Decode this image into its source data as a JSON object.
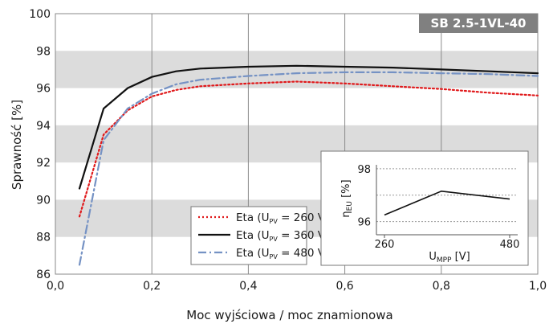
{
  "badge": "SB 2.5-1VL-40",
  "chart_data": [
    {
      "type": "line",
      "title": "",
      "xlabel": "Moc wyjściowa / moc znamionowa",
      "ylabel": "Sprawność [%]",
      "xlim": [
        0,
        1
      ],
      "ylim": [
        86,
        100
      ],
      "x_ticks": [
        "0,0",
        "0,2",
        "0,4",
        "0,6",
        "0,8",
        "1,0"
      ],
      "y_ticks": [
        "86",
        "88",
        "90",
        "92",
        "94",
        "96",
        "98",
        "100"
      ],
      "grid": "horizontal gray/white bands every 2%, vertical lines at 0.2 steps",
      "legend_position": "bottom-center",
      "series": [
        {
          "name": "Eta (U_PV = 260 V)",
          "legend_main": "Eta (U",
          "legend_sub": "PV",
          "legend_tail": " = 260 V)",
          "color": "#e0191b",
          "style": "dotted",
          "x": [
            0.05,
            0.1,
            0.15,
            0.2,
            0.25,
            0.3,
            0.4,
            0.5,
            0.6,
            0.7,
            0.8,
            0.9,
            1.0
          ],
          "y": [
            89.1,
            93.5,
            94.8,
            95.55,
            95.9,
            96.1,
            96.25,
            96.35,
            96.25,
            96.1,
            95.95,
            95.75,
            95.6
          ]
        },
        {
          "name": "Eta (U_PV = 360 V)",
          "legend_main": "Eta (U",
          "legend_sub": "PV",
          "legend_tail": " = 360 V)",
          "color": "#111111",
          "style": "solid",
          "x": [
            0.05,
            0.1,
            0.15,
            0.2,
            0.25,
            0.3,
            0.4,
            0.5,
            0.6,
            0.7,
            0.8,
            0.9,
            1.0
          ],
          "y": [
            90.6,
            94.9,
            96.0,
            96.6,
            96.9,
            97.05,
            97.15,
            97.2,
            97.15,
            97.1,
            97.0,
            96.9,
            96.8
          ]
        },
        {
          "name": "Eta (U_PV = 480 V)",
          "legend_main": "Eta (U",
          "legend_sub": "PV",
          "legend_tail": " = 480 V)",
          "color": "#7592c4",
          "style": "dashdot",
          "x": [
            0.05,
            0.1,
            0.15,
            0.2,
            0.25,
            0.3,
            0.4,
            0.5,
            0.6,
            0.7,
            0.8,
            0.9,
            1.0
          ],
          "y": [
            86.5,
            93.2,
            94.9,
            95.7,
            96.2,
            96.45,
            96.65,
            96.8,
            96.85,
            96.85,
            96.8,
            96.75,
            96.65
          ]
        }
      ]
    },
    {
      "type": "line",
      "title": "",
      "xlabel_main": "U",
      "xlabel_sub": "MPP",
      "xlabel_tail": " [V]",
      "ylabel_main": "η",
      "ylabel_sub": "EU",
      "ylabel_tail": " [%]",
      "x_ticks": [
        "260",
        "480"
      ],
      "y_ticks": [
        "96",
        "98"
      ],
      "xlim": [
        260,
        480
      ],
      "ylim": [
        95.5,
        98.3
      ],
      "grid": "horizontal dashed lines",
      "series": [
        {
          "color": "#111111",
          "x": [
            260,
            360,
            480
          ],
          "y": [
            96.25,
            97.15,
            96.85
          ]
        }
      ]
    }
  ]
}
